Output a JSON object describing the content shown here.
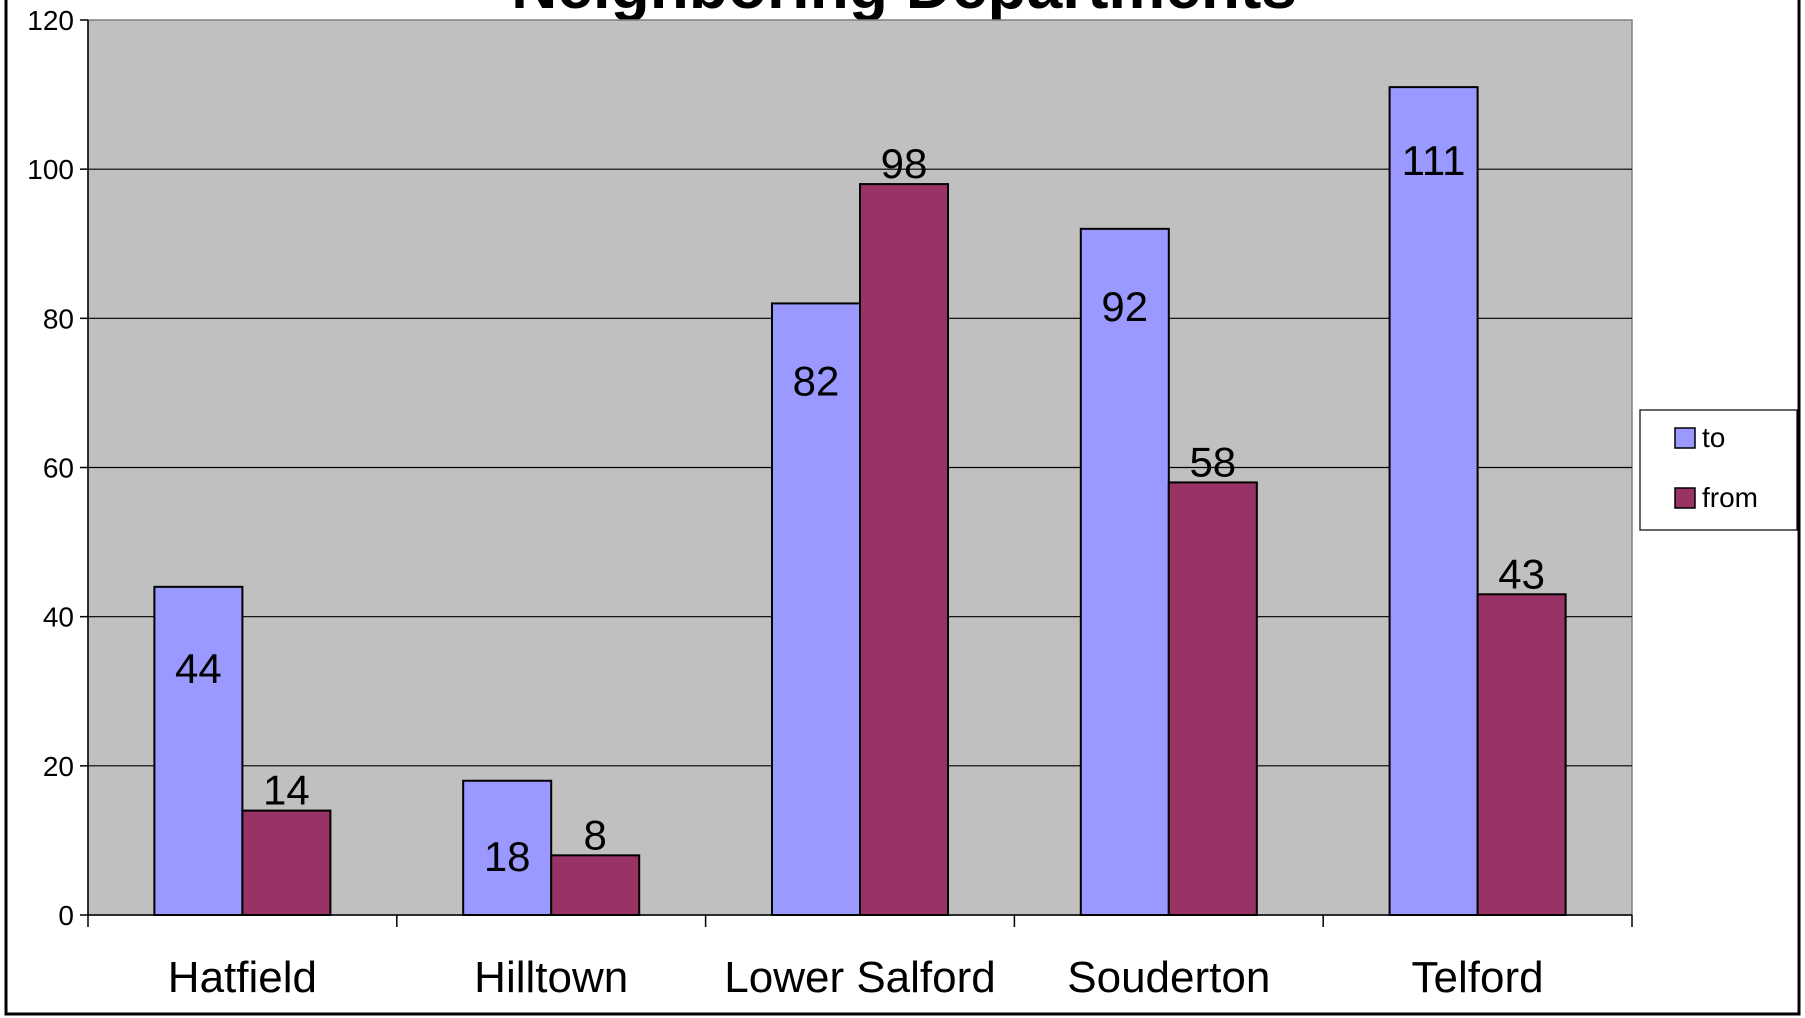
{
  "chart_data": {
    "type": "bar",
    "title": "Neighboring Departments",
    "categories": [
      "Hatfield",
      "Hilltown",
      "Lower Salford",
      "Souderton",
      "Telford"
    ],
    "series": [
      {
        "name": "to",
        "values": [
          44,
          18,
          82,
          92,
          111
        ],
        "color": "#9999FF"
      },
      {
        "name": "from",
        "values": [
          14,
          8,
          98,
          58,
          43
        ],
        "color": "#993366"
      }
    ],
    "ylim": [
      0,
      120
    ],
    "yticks": [
      0,
      20,
      40,
      60,
      80,
      100,
      120
    ],
    "grid": true,
    "legend": "right",
    "plot_background": "#C0C0C0"
  }
}
